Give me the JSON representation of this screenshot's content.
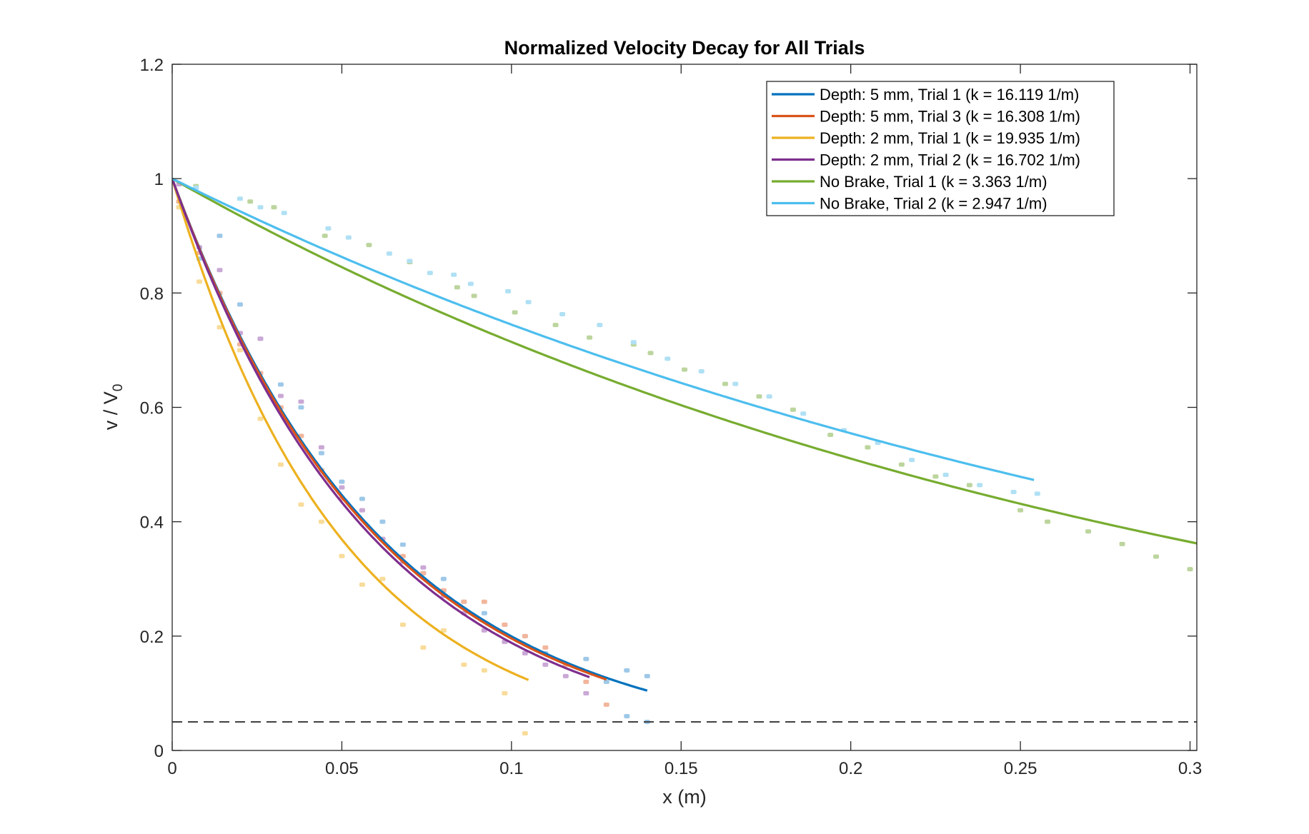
{
  "chart_data": {
    "type": "line",
    "title": "Normalized Velocity Decay for All Trials",
    "xlabel": "x (m)",
    "ylabel": "v / V",
    "ylabel_subscript": "0",
    "xlim": [
      0,
      0.302
    ],
    "ylim": [
      0,
      1.2
    ],
    "xticks": [
      0,
      0.05,
      0.1,
      0.15,
      0.2,
      0.25,
      0.3
    ],
    "xtick_labels": [
      "0",
      "0.05",
      "0.1",
      "0.15",
      "0.2",
      "0.25",
      "0.3"
    ],
    "yticks": [
      0,
      0.2,
      0.4,
      0.6,
      0.8,
      1,
      1.2
    ],
    "ytick_labels": [
      "0",
      "0.2",
      "0.4",
      "0.6",
      "0.8",
      "1",
      "1.2"
    ],
    "grid": false,
    "legend_placement": "top-right",
    "threshold_line": {
      "y": 0.05,
      "style": "dashed",
      "color": "#404040"
    },
    "series": [
      {
        "name": "Depth: 5 mm, Trial 1 (k = 16.119 1/m)",
        "k": 16.119,
        "x_end": 0.14,
        "color": "#0072BD",
        "scatter_color": "#9ec8e8",
        "scatter_x": [
          0.002,
          0.008,
          0.014,
          0.02,
          0.026,
          0.032,
          0.038,
          0.044,
          0.05,
          0.056,
          0.062,
          0.068,
          0.074,
          0.08,
          0.086,
          0.092,
          0.098,
          0.104,
          0.11,
          0.116,
          0.122,
          0.128,
          0.134,
          0.14,
          0.134,
          0.14
        ],
        "scatter_y": [
          0.95,
          0.86,
          0.9,
          0.78,
          0.72,
          0.64,
          0.6,
          0.52,
          0.47,
          0.44,
          0.4,
          0.36,
          0.31,
          0.3,
          0.26,
          0.24,
          0.22,
          0.2,
          0.17,
          0.15,
          0.16,
          0.12,
          0.14,
          0.13,
          0.06,
          0.05
        ]
      },
      {
        "name": "Depth: 5 mm, Trial 3 (k = 16.308 1/m)",
        "k": 16.308,
        "x_end": 0.128,
        "color": "#D95319",
        "scatter_color": "#f2b69c",
        "scatter_x": [
          0.002,
          0.008,
          0.014,
          0.02,
          0.026,
          0.032,
          0.038,
          0.044,
          0.05,
          0.056,
          0.062,
          0.068,
          0.074,
          0.08,
          0.086,
          0.092,
          0.098,
          0.104,
          0.11,
          0.116,
          0.122,
          0.128
        ],
        "scatter_y": [
          0.96,
          0.87,
          0.8,
          0.71,
          0.66,
          0.6,
          0.55,
          0.49,
          0.44,
          0.42,
          0.37,
          0.34,
          0.31,
          0.28,
          0.26,
          0.26,
          0.22,
          0.2,
          0.18,
          0.15,
          0.12,
          0.08
        ]
      },
      {
        "name": "Depth: 2 mm, Trial 1 (k = 19.935 1/m)",
        "k": 19.935,
        "x_end": 0.105,
        "color": "#EDB120",
        "scatter_color": "#f8dc9a",
        "scatter_x": [
          0.002,
          0.008,
          0.014,
          0.02,
          0.026,
          0.032,
          0.038,
          0.044,
          0.05,
          0.056,
          0.062,
          0.068,
          0.074,
          0.08,
          0.086,
          0.092,
          0.098,
          0.104
        ],
        "scatter_y": [
          0.95,
          0.82,
          0.74,
          0.7,
          0.58,
          0.5,
          0.43,
          0.4,
          0.34,
          0.29,
          0.3,
          0.22,
          0.18,
          0.21,
          0.15,
          0.14,
          0.1,
          0.03
        ]
      },
      {
        "name": "Depth: 2 mm, Trial 2 (k = 16.702 1/m)",
        "k": 16.702,
        "x_end": 0.123,
        "color": "#7E2F8E",
        "scatter_color": "#caa8d6",
        "scatter_x": [
          0.002,
          0.008,
          0.014,
          0.02,
          0.026,
          0.032,
          0.038,
          0.044,
          0.05,
          0.056,
          0.062,
          0.068,
          0.074,
          0.08,
          0.086,
          0.092,
          0.098,
          0.104,
          0.11,
          0.116,
          0.122
        ],
        "scatter_y": [
          0.99,
          0.88,
          0.84,
          0.73,
          0.72,
          0.62,
          0.61,
          0.53,
          0.46,
          0.42,
          0.37,
          0.33,
          0.32,
          0.27,
          0.24,
          0.21,
          0.19,
          0.17,
          0.15,
          0.13,
          0.1
        ]
      },
      {
        "name": "No Brake, Trial 1 (k = 3.363 1/m)",
        "k": 3.363,
        "x_end": 0.302,
        "color": "#77AC30",
        "scatter_color": "#bcd59e",
        "scatter_x": [
          0.007,
          0.023,
          0.03,
          0.045,
          0.058,
          0.07,
          0.084,
          0.089,
          0.101,
          0.113,
          0.123,
          0.136,
          0.141,
          0.151,
          0.163,
          0.173,
          0.183,
          0.194,
          0.205,
          0.215,
          0.225,
          0.235,
          0.25,
          0.258,
          0.27,
          0.28,
          0.29,
          0.3
        ],
        "scatter_y": [
          0.987,
          0.96,
          0.95,
          0.9,
          0.884,
          0.854,
          0.81,
          0.795,
          0.766,
          0.744,
          0.722,
          0.71,
          0.695,
          0.666,
          0.641,
          0.619,
          0.596,
          0.552,
          0.53,
          0.5,
          0.479,
          0.464,
          0.42,
          0.4,
          0.383,
          0.361,
          0.339,
          0.317
        ]
      },
      {
        "name": "No Brake, Trial 2 (k = 2.947 1/m)",
        "k": 2.947,
        "x_end": 0.254,
        "color": "#4DBEEE",
        "scatter_color": "#b0e0f4",
        "scatter_x": [
          0.007,
          0.02,
          0.026,
          0.033,
          0.046,
          0.052,
          0.064,
          0.07,
          0.076,
          0.083,
          0.088,
          0.099,
          0.105,
          0.115,
          0.126,
          0.136,
          0.146,
          0.156,
          0.166,
          0.176,
          0.186,
          0.198,
          0.208,
          0.218,
          0.228,
          0.238,
          0.248,
          0.255
        ],
        "scatter_y": [
          0.984,
          0.965,
          0.95,
          0.94,
          0.913,
          0.897,
          0.869,
          0.856,
          0.835,
          0.832,
          0.816,
          0.803,
          0.784,
          0.763,
          0.744,
          0.714,
          0.685,
          0.663,
          0.641,
          0.619,
          0.589,
          0.56,
          0.538,
          0.508,
          0.482,
          0.464,
          0.452,
          0.449
        ]
      }
    ]
  }
}
